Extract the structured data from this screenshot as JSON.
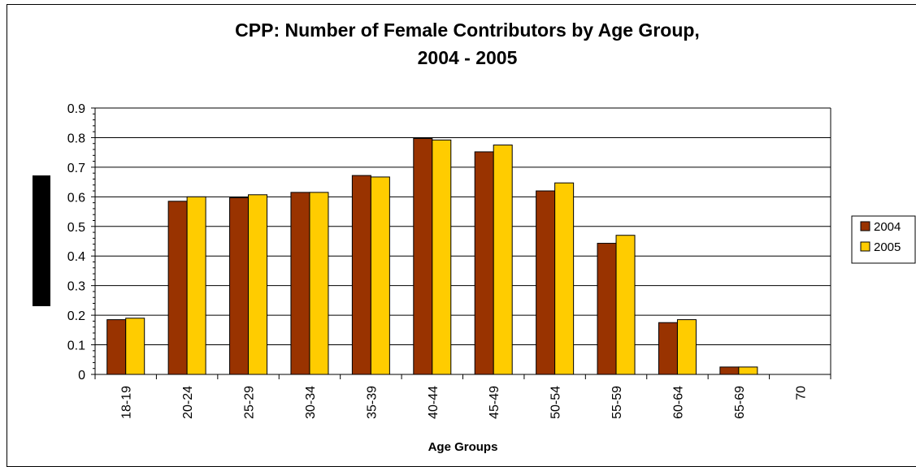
{
  "chart_data": {
    "type": "bar",
    "title_line1": "CPP: Number of Female Contributors by Age Group,",
    "title_line2": "2004 - 2005",
    "xlabel": "Age Groups",
    "ylabel": "",
    "ylim": [
      0,
      0.9
    ],
    "yticks": [
      "0",
      "0.1",
      "0.2",
      "0.3",
      "0.4",
      "0.5",
      "0.6",
      "0.7",
      "0.8",
      "0.9"
    ],
    "categories": [
      "18-19",
      "20-24",
      "25-29",
      "30-34",
      "35-39",
      "40-44",
      "45-49",
      "50-54",
      "55-59",
      "60-64",
      "65-69",
      "70"
    ],
    "series": [
      {
        "name": "2004",
        "color": "#993300",
        "values": [
          0.185,
          0.585,
          0.597,
          0.615,
          0.672,
          0.797,
          0.752,
          0.62,
          0.443,
          0.175,
          0.025,
          0.0
        ]
      },
      {
        "name": "2005",
        "color": "#FFCC00",
        "values": [
          0.19,
          0.6,
          0.607,
          0.615,
          0.667,
          0.792,
          0.775,
          0.647,
          0.47,
          0.185,
          0.025,
          0.0
        ]
      }
    ],
    "grid": true,
    "legend": "right"
  }
}
